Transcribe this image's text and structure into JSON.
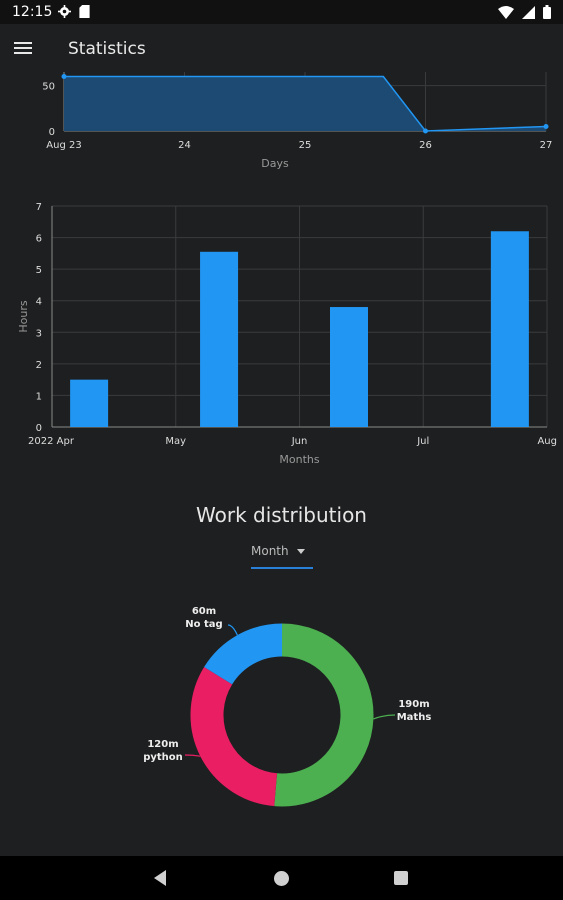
{
  "status_bar": {
    "time": "12:15",
    "icons_left": [
      "gear-icon",
      "sim-card-icon"
    ],
    "icons_right": [
      "wifi-icon",
      "signal-icon",
      "battery-icon"
    ]
  },
  "app_bar": {
    "title": "Statistics",
    "menu_icon": "hamburger-menu-icon"
  },
  "chart_data": [
    {
      "type": "area",
      "title": "",
      "xlabel": "Days",
      "ylabel": "",
      "x_ticks": [
        "Aug 23",
        "24",
        "25",
        "26",
        "27"
      ],
      "y_ticks": [
        0,
        50
      ],
      "x": [
        23,
        25.65,
        26,
        27
      ],
      "values": [
        60,
        60,
        0,
        5
      ],
      "xlim": [
        23,
        27
      ],
      "ylim": [
        0,
        65
      ],
      "color": "#2196f3",
      "fill": "#1c4a72",
      "grid": true
    },
    {
      "type": "bar",
      "title": "",
      "xlabel": "Months",
      "ylabel": "Hours",
      "x_ticks": [
        "2022 Apr",
        "May",
        "Jun",
        "Jul",
        "Aug"
      ],
      "y_ticks": [
        0,
        1,
        2,
        3,
        4,
        5,
        6,
        7
      ],
      "bar_positions": [
        0.3,
        1.35,
        2.4,
        3.7
      ],
      "values": [
        1.5,
        5.55,
        3.8,
        6.2
      ],
      "xlim": [
        0,
        4
      ],
      "ylim": [
        0,
        7
      ],
      "color": "#2196f3",
      "grid": true
    },
    {
      "type": "pie",
      "title": "Work distribution",
      "slices": [
        {
          "label": "Maths",
          "value": 190,
          "value_label": "190m",
          "color": "#4caf50"
        },
        {
          "label": "python",
          "value": 120,
          "value_label": "120m",
          "color": "#e91e63"
        },
        {
          "label": "No tag",
          "value": 60,
          "value_label": "60m",
          "color": "#2196f3"
        }
      ]
    }
  ],
  "work_distribution": {
    "title": "Work distribution",
    "period": "Month"
  },
  "nav_bar": {
    "icons": [
      "back-icon",
      "home-icon",
      "recents-icon"
    ]
  }
}
